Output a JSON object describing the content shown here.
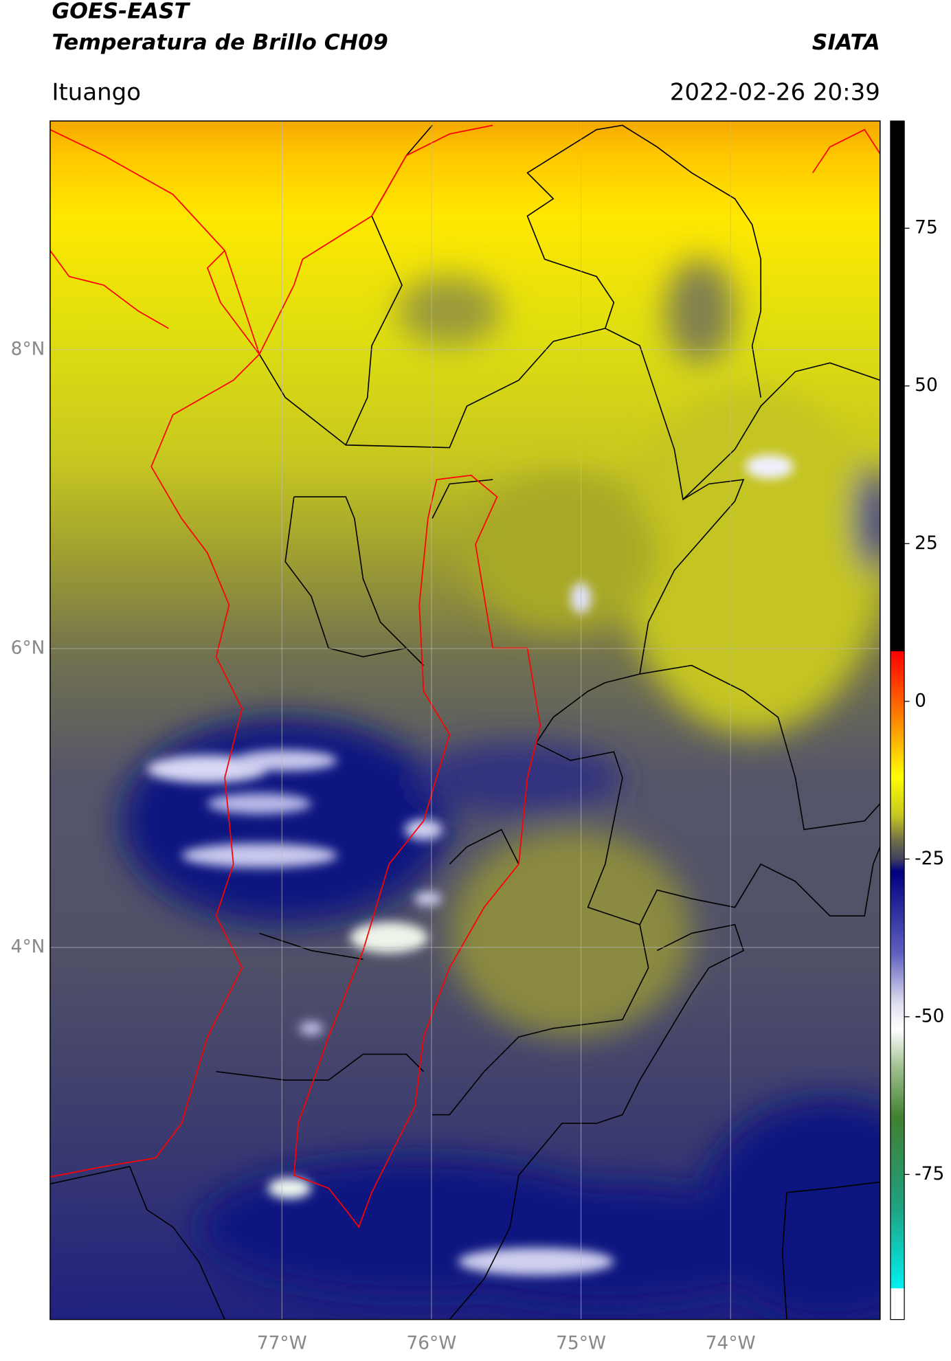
{
  "chart_data": {
    "type": "map",
    "title": "GOES-EAST",
    "subtitle": "Temperatura de Brillo CH09",
    "source": "SIATA",
    "location": "Ituango",
    "timestamp": "2022-02-26 20:39",
    "xlim": [
      -78.55,
      -73.0
    ],
    "ylim": [
      1.51,
      9.53
    ],
    "xticks": [
      {
        "value": -77,
        "label": "77°W"
      },
      {
        "value": -76,
        "label": "76°W"
      },
      {
        "value": -75,
        "label": "75°W"
      },
      {
        "value": -74,
        "label": "74°W"
      }
    ],
    "yticks": [
      {
        "value": 8,
        "label": "8°N"
      },
      {
        "value": 6,
        "label": "6°N"
      },
      {
        "value": 4,
        "label": "4°N"
      }
    ],
    "grid": true,
    "colorbar": {
      "lim": [
        -98,
        92
      ],
      "ticks": [
        75,
        50,
        25,
        0,
        -25,
        -50,
        -75
      ],
      "stops": [
        {
          "value": 92,
          "color": "#000000"
        },
        {
          "value": 8,
          "color": "#000000"
        },
        {
          "value": 7.9,
          "color": "#ff0000"
        },
        {
          "value": 0,
          "color": "#ff6000"
        },
        {
          "value": -12,
          "color": "#ffff00"
        },
        {
          "value": -18,
          "color": "#c8c820"
        },
        {
          "value": -22,
          "color": "#707048"
        },
        {
          "value": -25,
          "color": "#404060"
        },
        {
          "value": -27,
          "color": "#000080"
        },
        {
          "value": -40,
          "color": "#6060c0"
        },
        {
          "value": -48,
          "color": "#e0e0f0"
        },
        {
          "value": -52,
          "color": "#ffffff"
        },
        {
          "value": -58,
          "color": "#a0c090"
        },
        {
          "value": -66,
          "color": "#408030"
        },
        {
          "value": -80,
          "color": "#20a080"
        },
        {
          "value": -93,
          "color": "#00f0f0"
        },
        {
          "value": -93.1,
          "color": "#ffffff"
        },
        {
          "value": -98,
          "color": "#ffffff"
        }
      ]
    }
  }
}
